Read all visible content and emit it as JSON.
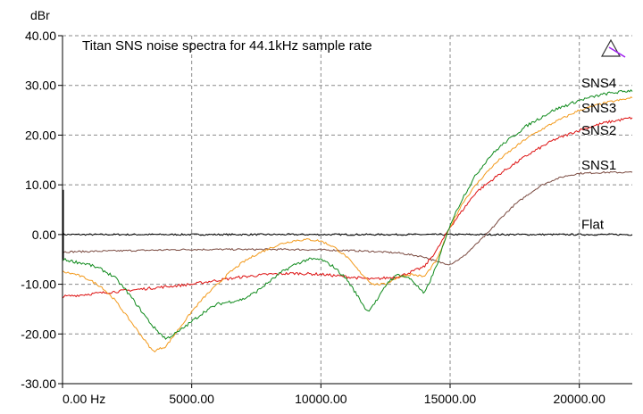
{
  "chart_data": {
    "type": "line",
    "title": "Titan SNS noise spectra for 44.1kHz sample rate",
    "xlabel": "",
    "ylabel": "dBr",
    "xlim": [
      0,
      22050
    ],
    "ylim": [
      -30,
      40
    ],
    "x_ticks": [
      {
        "value": 0,
        "label": "0.00 Hz"
      },
      {
        "value": 5000,
        "label": "5000.00"
      },
      {
        "value": 10000,
        "label": "10000.00"
      },
      {
        "value": 15000,
        "label": "15000.00"
      },
      {
        "value": 20000,
        "label": "20000.00"
      }
    ],
    "y_ticks": [
      {
        "value": 40,
        "label": "40.00"
      },
      {
        "value": 30,
        "label": "30.00"
      },
      {
        "value": 20,
        "label": "20.00"
      },
      {
        "value": 10,
        "label": "10.00"
      },
      {
        "value": 0,
        "label": "0.00"
      },
      {
        "value": -10,
        "label": "-10.00"
      },
      {
        "value": -20,
        "label": "-20.00"
      },
      {
        "value": -30,
        "label": "-30.00"
      }
    ],
    "grid": true,
    "series": [
      {
        "name": "Flat",
        "color": "#000000",
        "x": [
          0,
          2000,
          4000,
          6000,
          8000,
          10000,
          12000,
          14000,
          16000,
          18000,
          20000,
          22050
        ],
        "y": [
          0,
          0,
          0,
          0,
          0,
          0,
          0,
          0,
          0,
          0,
          0,
          0
        ]
      },
      {
        "name": "SNS1",
        "color": "#7a4a40",
        "x": [
          0,
          1000,
          2000,
          3000,
          4000,
          5000,
          6000,
          7000,
          8000,
          9000,
          10000,
          11000,
          12000,
          13000,
          14000,
          14500,
          15000,
          15500,
          16000,
          16500,
          17000,
          17500,
          18000,
          18500,
          19000,
          19500,
          20000,
          21000,
          22050
        ],
        "y": [
          -3.5,
          -3.4,
          -3.3,
          -3.2,
          -3.1,
          -3.0,
          -3.0,
          -3.0,
          -3.0,
          -3.0,
          -3.1,
          -3.2,
          -3.4,
          -3.7,
          -4.5,
          -5.5,
          -6.0,
          -4.5,
          -2.0,
          0.5,
          3.5,
          6.0,
          8.0,
          9.8,
          11.0,
          11.8,
          12.3,
          12.5,
          12.5
        ]
      },
      {
        "name": "SNS2",
        "color": "#dd1111",
        "x": [
          0,
          1000,
          2000,
          3000,
          4000,
          5000,
          6000,
          7000,
          8000,
          9000,
          10000,
          11000,
          12000,
          13000,
          14000,
          14500,
          15000,
          15500,
          16000,
          17000,
          18000,
          19000,
          20000,
          21000,
          22050
        ],
        "y": [
          -12.5,
          -12.0,
          -11.5,
          -11.0,
          -10.5,
          -10.0,
          -9.2,
          -8.5,
          -8.0,
          -7.8,
          -8.0,
          -8.5,
          -9.0,
          -8.5,
          -6.5,
          -3.0,
          1.5,
          5.0,
          8.5,
          12.5,
          16.0,
          19.0,
          21.0,
          22.5,
          23.5
        ]
      },
      {
        "name": "SNS3",
        "color": "#f39a1c",
        "x": [
          0,
          500,
          1000,
          1500,
          2000,
          2500,
          3000,
          3500,
          4000,
          4500,
          5000,
          5500,
          6000,
          6500,
          7000,
          7500,
          8000,
          8500,
          9000,
          9500,
          10000,
          10500,
          11000,
          11500,
          12000,
          12500,
          13000,
          13500,
          14000,
          14500,
          15000,
          15500,
          16000,
          16500,
          17000,
          18000,
          19000,
          20000,
          21000,
          22050
        ],
        "y": [
          -7.5,
          -8.0,
          -9.0,
          -10.5,
          -13.0,
          -16.5,
          -20.0,
          -23.5,
          -22.5,
          -19.0,
          -15.5,
          -12.5,
          -10.0,
          -7.5,
          -5.5,
          -4.0,
          -2.8,
          -1.8,
          -1.2,
          -1.0,
          -1.3,
          -2.5,
          -4.5,
          -7.5,
          -10.0,
          -10.0,
          -8.5,
          -8.0,
          -8.5,
          -5.0,
          1.5,
          6.5,
          10.0,
          13.0,
          15.5,
          19.5,
          22.5,
          25.0,
          26.5,
          27.5
        ]
      },
      {
        "name": "SNS4",
        "color": "#0f8a1c",
        "x": [
          0,
          500,
          1000,
          1500,
          2000,
          2500,
          3000,
          3500,
          4000,
          4500,
          5000,
          5500,
          6000,
          6500,
          7000,
          7500,
          8000,
          8500,
          9000,
          9500,
          10000,
          10500,
          11000,
          11500,
          11800,
          12200,
          12600,
          13000,
          13500,
          14000,
          14500,
          15000,
          15500,
          16000,
          16500,
          17000,
          18000,
          19000,
          20000,
          21000,
          22050
        ],
        "y": [
          -5.0,
          -5.5,
          -6.0,
          -7.0,
          -8.5,
          -11.5,
          -15.0,
          -18.5,
          -21.0,
          -19.5,
          -17.5,
          -15.5,
          -14.0,
          -13.5,
          -13.0,
          -11.5,
          -9.5,
          -7.5,
          -6.0,
          -5.0,
          -5.0,
          -6.5,
          -9.0,
          -13.0,
          -15.5,
          -13.0,
          -9.5,
          -8.0,
          -9.0,
          -12.0,
          -6.0,
          2.0,
          7.5,
          12.0,
          15.5,
          18.0,
          22.0,
          25.0,
          27.0,
          28.3,
          29.0
        ]
      }
    ]
  }
}
